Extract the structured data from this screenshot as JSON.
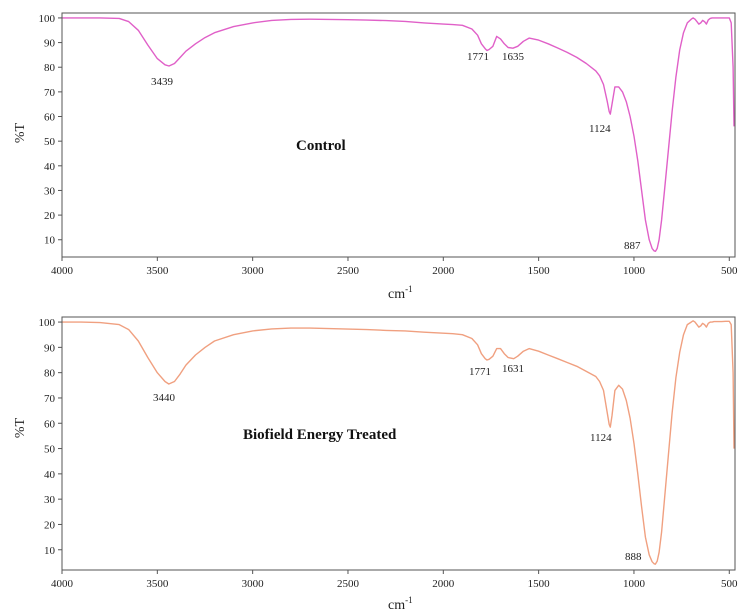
{
  "chart_data": [
    {
      "type": "line",
      "title": "Control",
      "xlabel": "cm",
      "xlabel_sup": "-1",
      "ylabel": "%T",
      "xlim": [
        4000,
        470
      ],
      "ylim": [
        3,
        102
      ],
      "x_ticks": [
        4000,
        3500,
        3000,
        2500,
        2000,
        1500,
        1000,
        500
      ],
      "y_ticks": [
        10,
        20,
        30,
        40,
        50,
        60,
        70,
        80,
        90,
        100
      ],
      "grid": false,
      "series": [
        {
          "color": "#e060c8",
          "x": [
            4000,
            3900,
            3800,
            3700,
            3650,
            3600,
            3550,
            3500,
            3460,
            3439,
            3410,
            3380,
            3350,
            3300,
            3250,
            3200,
            3100,
            3000,
            2900,
            2800,
            2700,
            2600,
            2500,
            2400,
            2300,
            2200,
            2100,
            2000,
            1950,
            1900,
            1850,
            1820,
            1800,
            1780,
            1771,
            1760,
            1740,
            1720,
            1700,
            1680,
            1660,
            1635,
            1610,
            1580,
            1550,
            1500,
            1450,
            1400,
            1350,
            1300,
            1250,
            1200,
            1180,
            1160,
            1140,
            1130,
            1124,
            1115,
            1100,
            1080,
            1060,
            1040,
            1020,
            1000,
            980,
            960,
            940,
            920,
            905,
            895,
            887,
            878,
            868,
            855,
            840,
            820,
            800,
            780,
            760,
            740,
            720,
            700,
            690,
            680,
            670,
            660,
            650,
            640,
            630,
            620,
            610,
            600,
            590,
            580,
            560,
            540,
            520,
            500,
            490,
            480,
            475
          ],
          "y": [
            100,
            100,
            100,
            99.8,
            98.5,
            95,
            89,
            83.5,
            81,
            80.5,
            81.5,
            84,
            86.5,
            89.5,
            92,
            94,
            96.5,
            98,
            99,
            99.4,
            99.5,
            99.4,
            99.3,
            99.1,
            98.9,
            98.6,
            98,
            97.5,
            97.3,
            97,
            95.5,
            93,
            89.5,
            87.5,
            86.8,
            87.2,
            88.5,
            92.5,
            91.5,
            89.5,
            88,
            87.7,
            88.5,
            90.5,
            91.8,
            91,
            89.5,
            87.8,
            86,
            84,
            81.5,
            78.5,
            76.5,
            73,
            66,
            62,
            61,
            65,
            72,
            72,
            70,
            66,
            60,
            52,
            42,
            30,
            18,
            10,
            6.5,
            5.5,
            5.3,
            6.5,
            10,
            18,
            30,
            46,
            62,
            76,
            87,
            94,
            98,
            99.5,
            100,
            99.5,
            98.5,
            97.5,
            98,
            99,
            98.5,
            97.5,
            99.2,
            99.8,
            100,
            100,
            100,
            100,
            100,
            100,
            98,
            80,
            56
          ]
        }
      ],
      "annotations": [
        "3439",
        "1771",
        "1635",
        "1124",
        "887"
      ]
    },
    {
      "type": "line",
      "title": "Biofield Energy Treated",
      "xlabel": "cm",
      "xlabel_sup": "-1",
      "ylabel": "%T",
      "xlim": [
        4000,
        470
      ],
      "ylim": [
        2,
        102
      ],
      "x_ticks": [
        4000,
        3500,
        3000,
        2500,
        2000,
        1500,
        1000,
        500
      ],
      "y_ticks": [
        10,
        20,
        30,
        40,
        50,
        60,
        70,
        80,
        90,
        100
      ],
      "grid": false,
      "series": [
        {
          "color": "#f0a080",
          "x": [
            4000,
            3900,
            3800,
            3700,
            3650,
            3600,
            3550,
            3500,
            3460,
            3440,
            3410,
            3380,
            3350,
            3300,
            3250,
            3200,
            3100,
            3000,
            2900,
            2800,
            2700,
            2600,
            2500,
            2400,
            2300,
            2200,
            2100,
            2000,
            1950,
            1900,
            1850,
            1820,
            1800,
            1780,
            1771,
            1760,
            1740,
            1720,
            1700,
            1680,
            1660,
            1631,
            1610,
            1580,
            1550,
            1500,
            1450,
            1400,
            1350,
            1300,
            1250,
            1200,
            1180,
            1160,
            1140,
            1130,
            1124,
            1115,
            1100,
            1080,
            1060,
            1040,
            1020,
            1000,
            980,
            960,
            940,
            920,
            905,
            895,
            888,
            878,
            868,
            855,
            840,
            820,
            800,
            780,
            760,
            740,
            720,
            700,
            690,
            680,
            670,
            660,
            650,
            640,
            630,
            620,
            610,
            600,
            590,
            580,
            560,
            540,
            520,
            500,
            490,
            480,
            475
          ],
          "y": [
            100,
            100,
            99.8,
            99,
            97,
            92.5,
            86,
            80,
            76.5,
            75.5,
            76.5,
            79.5,
            83,
            87,
            90,
            92.5,
            95,
            96.5,
            97.3,
            97.6,
            97.6,
            97.4,
            97.2,
            97,
            96.7,
            96.5,
            96,
            95.6,
            95.4,
            95,
            93.5,
            91,
            87.5,
            85.5,
            85,
            85.3,
            86.5,
            89.5,
            89.5,
            87.5,
            86,
            85.5,
            86.5,
            88.5,
            89.5,
            88.5,
            87,
            85.5,
            84,
            82.5,
            80.5,
            78.5,
            76.5,
            73,
            64,
            59.5,
            58.5,
            63,
            73,
            75,
            73.5,
            69,
            62,
            52,
            40,
            27,
            15,
            8,
            5.3,
            4.5,
            4.3,
            5.5,
            9,
            17,
            30,
            47,
            64,
            78,
            88,
            95,
            99,
            100,
            100.5,
            100,
            99,
            98,
            98.5,
            99.5,
            99,
            98,
            99.5,
            100,
            100,
            100.2,
            100.2,
            100.2,
            100.3,
            100.3,
            99,
            80,
            50
          ]
        }
      ],
      "annotations": [
        "3440",
        "1771",
        "1631",
        "1124",
        "888"
      ]
    }
  ]
}
